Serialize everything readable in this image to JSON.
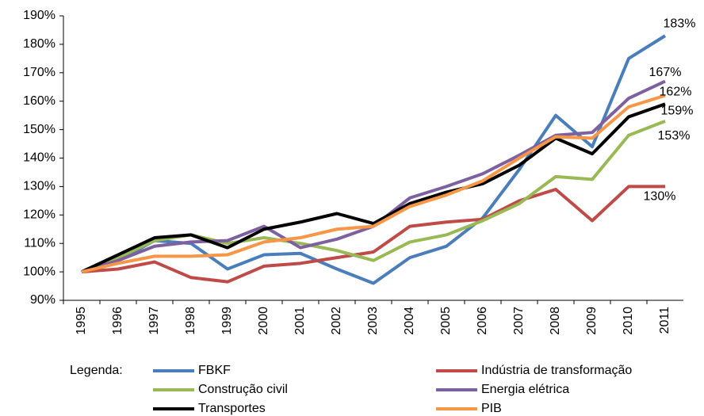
{
  "chart_data": {
    "type": "line",
    "categories": [
      "1995",
      "1996",
      "1997",
      "1998",
      "1999",
      "2000",
      "2001",
      "2002",
      "2003",
      "2004",
      "2005",
      "2006",
      "2007",
      "2008",
      "2009",
      "2010",
      "2011"
    ],
    "ylim": [
      90,
      190
    ],
    "yticks": [
      {
        "value": 90,
        "label": "90%"
      },
      {
        "value": 100,
        "label": "100%"
      },
      {
        "value": 110,
        "label": "110%"
      },
      {
        "value": 120,
        "label": "120%"
      },
      {
        "value": 130,
        "label": "130%"
      },
      {
        "value": 140,
        "label": "140%"
      },
      {
        "value": 150,
        "label": "150%"
      },
      {
        "value": 160,
        "label": "160%"
      },
      {
        "value": 170,
        "label": "170%"
      },
      {
        "value": 180,
        "label": "180%"
      },
      {
        "value": 190,
        "label": "190%"
      }
    ],
    "legend_title": "Legenda:",
    "series": [
      {
        "name": "FBKF",
        "color": "#4a7ebb",
        "values": [
          100,
          104,
          111,
          110,
          101,
          106,
          106.5,
          101,
          96,
          105,
          109,
          119,
          136,
          155,
          144,
          175,
          183
        ],
        "value_labels": [
          null,
          null,
          null,
          null,
          null,
          null,
          null,
          null,
          null,
          null,
          null,
          null,
          null,
          null,
          null,
          null,
          "183%"
        ]
      },
      {
        "name": "Indústria de transformação",
        "color": "#be4b48",
        "values": [
          100,
          101,
          103.5,
          98,
          96.5,
          102,
          103,
          105,
          107,
          116,
          117.5,
          118.5,
          125,
          129,
          118,
          130,
          130
        ],
        "value_labels": [
          null,
          null,
          null,
          null,
          null,
          null,
          null,
          null,
          null,
          null,
          null,
          null,
          null,
          null,
          null,
          null,
          "130%"
        ]
      },
      {
        "name": "Construção civil",
        "color": "#98b954",
        "values": [
          100,
          105,
          111,
          113,
          110,
          112,
          110,
          107.5,
          104,
          110.5,
          113,
          118,
          124,
          133.5,
          132.5,
          148,
          153
        ],
        "value_labels": [
          null,
          null,
          null,
          null,
          null,
          null,
          null,
          null,
          null,
          null,
          null,
          null,
          null,
          null,
          null,
          null,
          "153%"
        ]
      },
      {
        "name": "Energia elétrica",
        "color": "#7d60a0",
        "values": [
          100,
          104,
          109,
          110.5,
          111,
          116,
          108.5,
          111.5,
          116,
          126,
          130,
          134.5,
          141,
          148,
          149,
          161,
          167
        ],
        "value_labels": [
          null,
          null,
          null,
          null,
          null,
          null,
          null,
          null,
          null,
          null,
          null,
          null,
          null,
          null,
          null,
          null,
          "167%"
        ]
      },
      {
        "name": "Transportes",
        "color": "#000000",
        "values": [
          100,
          106,
          112,
          113,
          108.5,
          115,
          117.5,
          120.5,
          117,
          124,
          128,
          131,
          137.5,
          147,
          141.5,
          154.5,
          159
        ],
        "value_labels": [
          null,
          null,
          null,
          null,
          null,
          null,
          null,
          null,
          null,
          null,
          null,
          null,
          null,
          null,
          null,
          null,
          "159%"
        ]
      },
      {
        "name": "PIB",
        "color": "#f79646",
        "values": [
          100,
          103,
          105.5,
          105.5,
          106,
          110.5,
          112,
          115,
          116,
          123,
          127,
          132,
          140,
          147.5,
          147,
          158,
          162
        ],
        "value_labels": [
          null,
          null,
          null,
          null,
          null,
          null,
          null,
          null,
          null,
          null,
          null,
          null,
          null,
          null,
          null,
          null,
          "162%"
        ]
      }
    ]
  }
}
